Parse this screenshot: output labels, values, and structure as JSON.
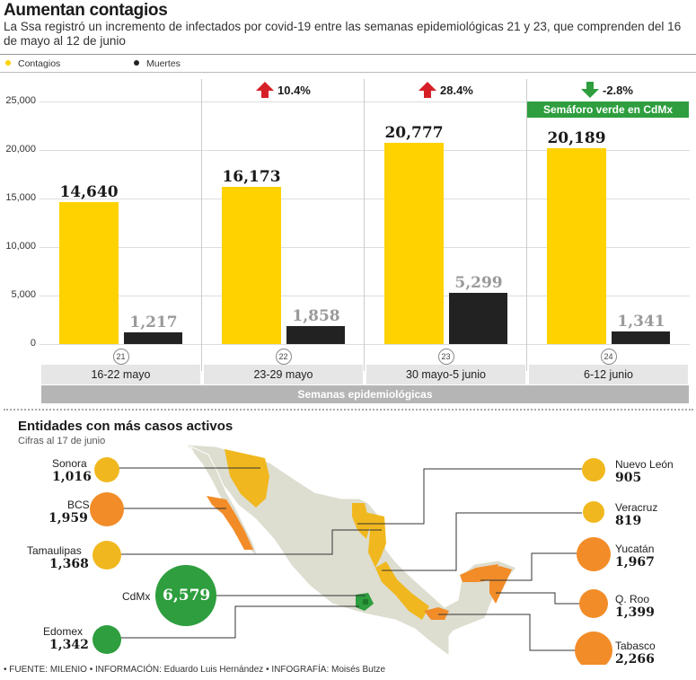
{
  "title": "Aumentan contagios",
  "subtitle": "La Ssa registró un incremento de infectados por covid-19 entre las semanas epidemiológicas 21 y 23, que comprenden del 16 de mayo al 12 de junio",
  "legend": [
    {
      "label": "Contagios",
      "color": "#ffd200"
    },
    {
      "label": "Muertes",
      "color": "#222222"
    }
  ],
  "chart_data": {
    "type": "bar",
    "categories": [
      "16-22 mayo",
      "23-29 mayo",
      "30 mayo-5 junio",
      "6-12 junio"
    ],
    "week_numbers": [
      "21",
      "22",
      "23",
      "24"
    ],
    "series": [
      {
        "name": "Contagios",
        "values": [
          14640,
          16173,
          20777,
          20189
        ],
        "labels": [
          "14,640",
          "16,173",
          "20,777",
          "20,189"
        ],
        "color": "#ffd200"
      },
      {
        "name": "Muertes",
        "values": [
          1217,
          1858,
          5299,
          1341
        ],
        "labels": [
          "1,217",
          "1,858",
          "5,299",
          "1,341"
        ],
        "color": "#222222"
      }
    ],
    "changes": [
      null,
      {
        "text": "10.4%",
        "direction": "up",
        "color": "#d62027"
      },
      {
        "text": "28.4%",
        "direction": "up",
        "color": "#d62027"
      },
      {
        "text": "-2.8%",
        "direction": "down",
        "color": "#2e9e3e"
      }
    ],
    "badge": "Semáforo verde en CdMx",
    "badge_color": "#2e9e3e",
    "y_ticks": [
      "0",
      "5,000",
      "10,000",
      "15,000",
      "20,000",
      "25,000"
    ],
    "y_tick_values": [
      0,
      5000,
      10000,
      15000,
      20000,
      25000
    ],
    "ylim": [
      0,
      25000
    ],
    "xlabel": "Semanas epidemiológicas",
    "grid": true,
    "legend_position": "top-left"
  },
  "map": {
    "title": "Entidades con más casos activos",
    "subtitle": "Cifras al 17 de junio",
    "colors": {
      "low": "#f0b81e",
      "high": "#f28c28",
      "cdmx": "#2e9e3e",
      "edomex": "#2e9e3e",
      "land": "#ddddd0"
    },
    "states": [
      {
        "name": "Sonora",
        "value": "1,016"
      },
      {
        "name": "BCS",
        "value": "1,959"
      },
      {
        "name": "Tamaulipas",
        "value": "1,368"
      },
      {
        "name": "CdMx",
        "value": "6,579"
      },
      {
        "name": "Edomex",
        "value": "1,342"
      },
      {
        "name": "Nuevo León",
        "value": "905"
      },
      {
        "name": "Veracruz",
        "value": "819"
      },
      {
        "name": "Yucatán",
        "value": "1,967"
      },
      {
        "name": "Q. Roo",
        "value": "1,399"
      },
      {
        "name": "Tabasco",
        "value": "2,266"
      }
    ]
  },
  "source": "• FUENTE: MILENIO • INFORMACIÓN: Eduardo Luis Hernández • INFOGRAFÍA: Moisés Butze"
}
